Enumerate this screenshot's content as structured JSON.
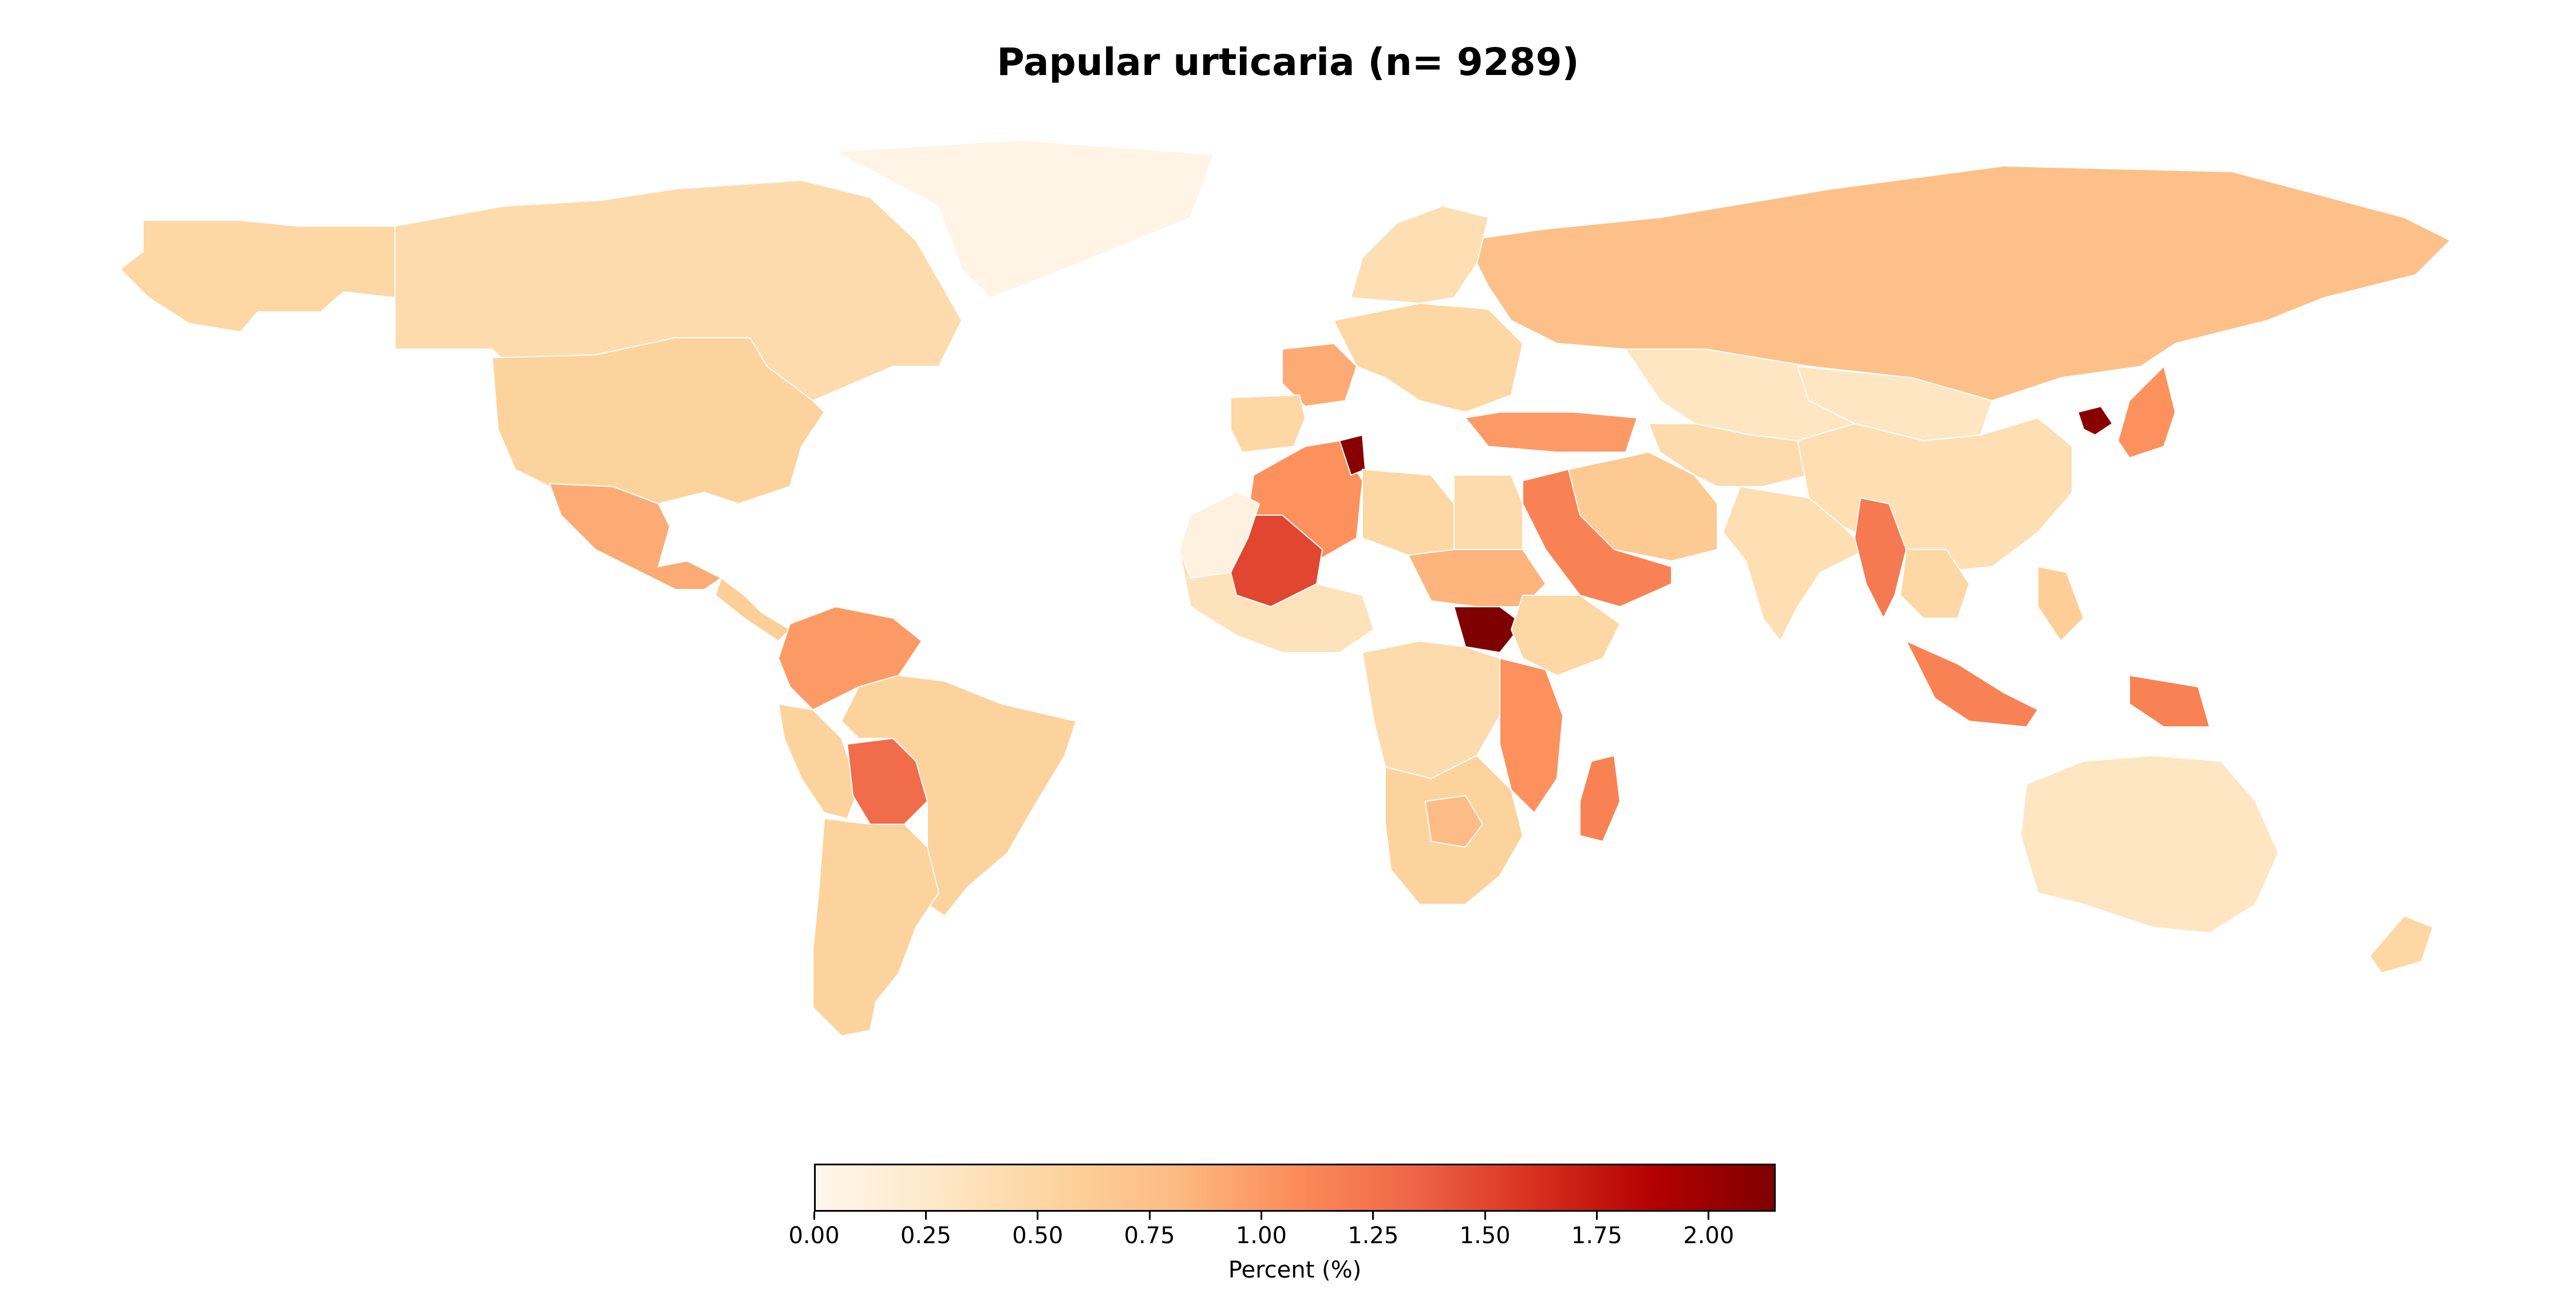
{
  "title": "Papular urticaria (n= 9289)",
  "colorbar": {
    "label": "Percent (%)",
    "min": 0,
    "max": 2.15,
    "ticks": [
      "0.00",
      "0.25",
      "0.50",
      "0.75",
      "1.00",
      "1.25",
      "1.50",
      "1.75",
      "2.00"
    ],
    "colormap": "OrRd",
    "stops": [
      "#fff7ec",
      "#fee8c8",
      "#fdd49e",
      "#fdbb84",
      "#fc8d59",
      "#ef6548",
      "#d7301f",
      "#b30000",
      "#7f0000"
    ]
  },
  "chart_data": {
    "type": "choropleth",
    "title": "Papular urticaria (n= 9289)",
    "color_label": "Percent (%)",
    "range": [
      0,
      2.15
    ],
    "regions": [
      {
        "name": "Canada",
        "value": 0.45
      },
      {
        "name": "USA",
        "value": 0.55
      },
      {
        "name": "Mexico",
        "value": 0.9
      },
      {
        "name": "Greenland",
        "value": 0.05
      },
      {
        "name": "Alaska",
        "value": 0.5
      },
      {
        "name": "Central America",
        "value": 0.6
      },
      {
        "name": "Colombia-Venezuela",
        "value": 1.0
      },
      {
        "name": "Brazil",
        "value": 0.55
      },
      {
        "name": "Peru",
        "value": 0.55
      },
      {
        "name": "Bolivia",
        "value": 1.3
      },
      {
        "name": "Argentina-Chile",
        "value": 0.55
      },
      {
        "name": "Russia",
        "value": 0.75
      },
      {
        "name": "Scandinavia",
        "value": 0.4
      },
      {
        "name": "Western Europe",
        "value": 0.5
      },
      {
        "name": "France",
        "value": 0.9
      },
      {
        "name": "Iberia",
        "value": 0.5
      },
      {
        "name": "Turkey",
        "value": 1.0
      },
      {
        "name": "Kazakhstan",
        "value": 0.3
      },
      {
        "name": "Middle Asia",
        "value": 0.45
      },
      {
        "name": "China",
        "value": 0.4
      },
      {
        "name": "Mongolia",
        "value": 0.3
      },
      {
        "name": "India",
        "value": 0.4
      },
      {
        "name": "Saudi Arabia",
        "value": 1.15
      },
      {
        "name": "Iran",
        "value": 0.65
      },
      {
        "name": "Myanmar",
        "value": 1.2
      },
      {
        "name": "Southeast Asia",
        "value": 0.5
      },
      {
        "name": "Indonesia",
        "value": 1.15
      },
      {
        "name": "Papua",
        "value": 1.15
      },
      {
        "name": "Japan",
        "value": 1.05
      },
      {
        "name": "North Korea",
        "value": 2.1
      },
      {
        "name": "Philippines",
        "value": 0.6
      },
      {
        "name": "Australia",
        "value": 0.3
      },
      {
        "name": "New Zealand",
        "value": 0.5
      },
      {
        "name": "Algeria",
        "value": 1.05
      },
      {
        "name": "Tunisia",
        "value": 2.1
      },
      {
        "name": "Mali",
        "value": 1.5
      },
      {
        "name": "Libya",
        "value": 0.5
      },
      {
        "name": "Egypt",
        "value": 0.45
      },
      {
        "name": "Sudan",
        "value": 0.85
      },
      {
        "name": "South Sudan",
        "value": 2.15
      },
      {
        "name": "Ethiopia",
        "value": 0.5
      },
      {
        "name": "West Africa",
        "value": 0.35
      },
      {
        "name": "Central Africa",
        "value": 0.45
      },
      {
        "name": "Tanzania-Kenya",
        "value": 1.05
      },
      {
        "name": "Madagascar",
        "value": 1.15
      },
      {
        "name": "Southern Africa",
        "value": 0.55
      },
      {
        "name": "Botswana",
        "value": 0.8
      },
      {
        "name": "Morocco-Sahara",
        "value": 0.1
      }
    ]
  }
}
